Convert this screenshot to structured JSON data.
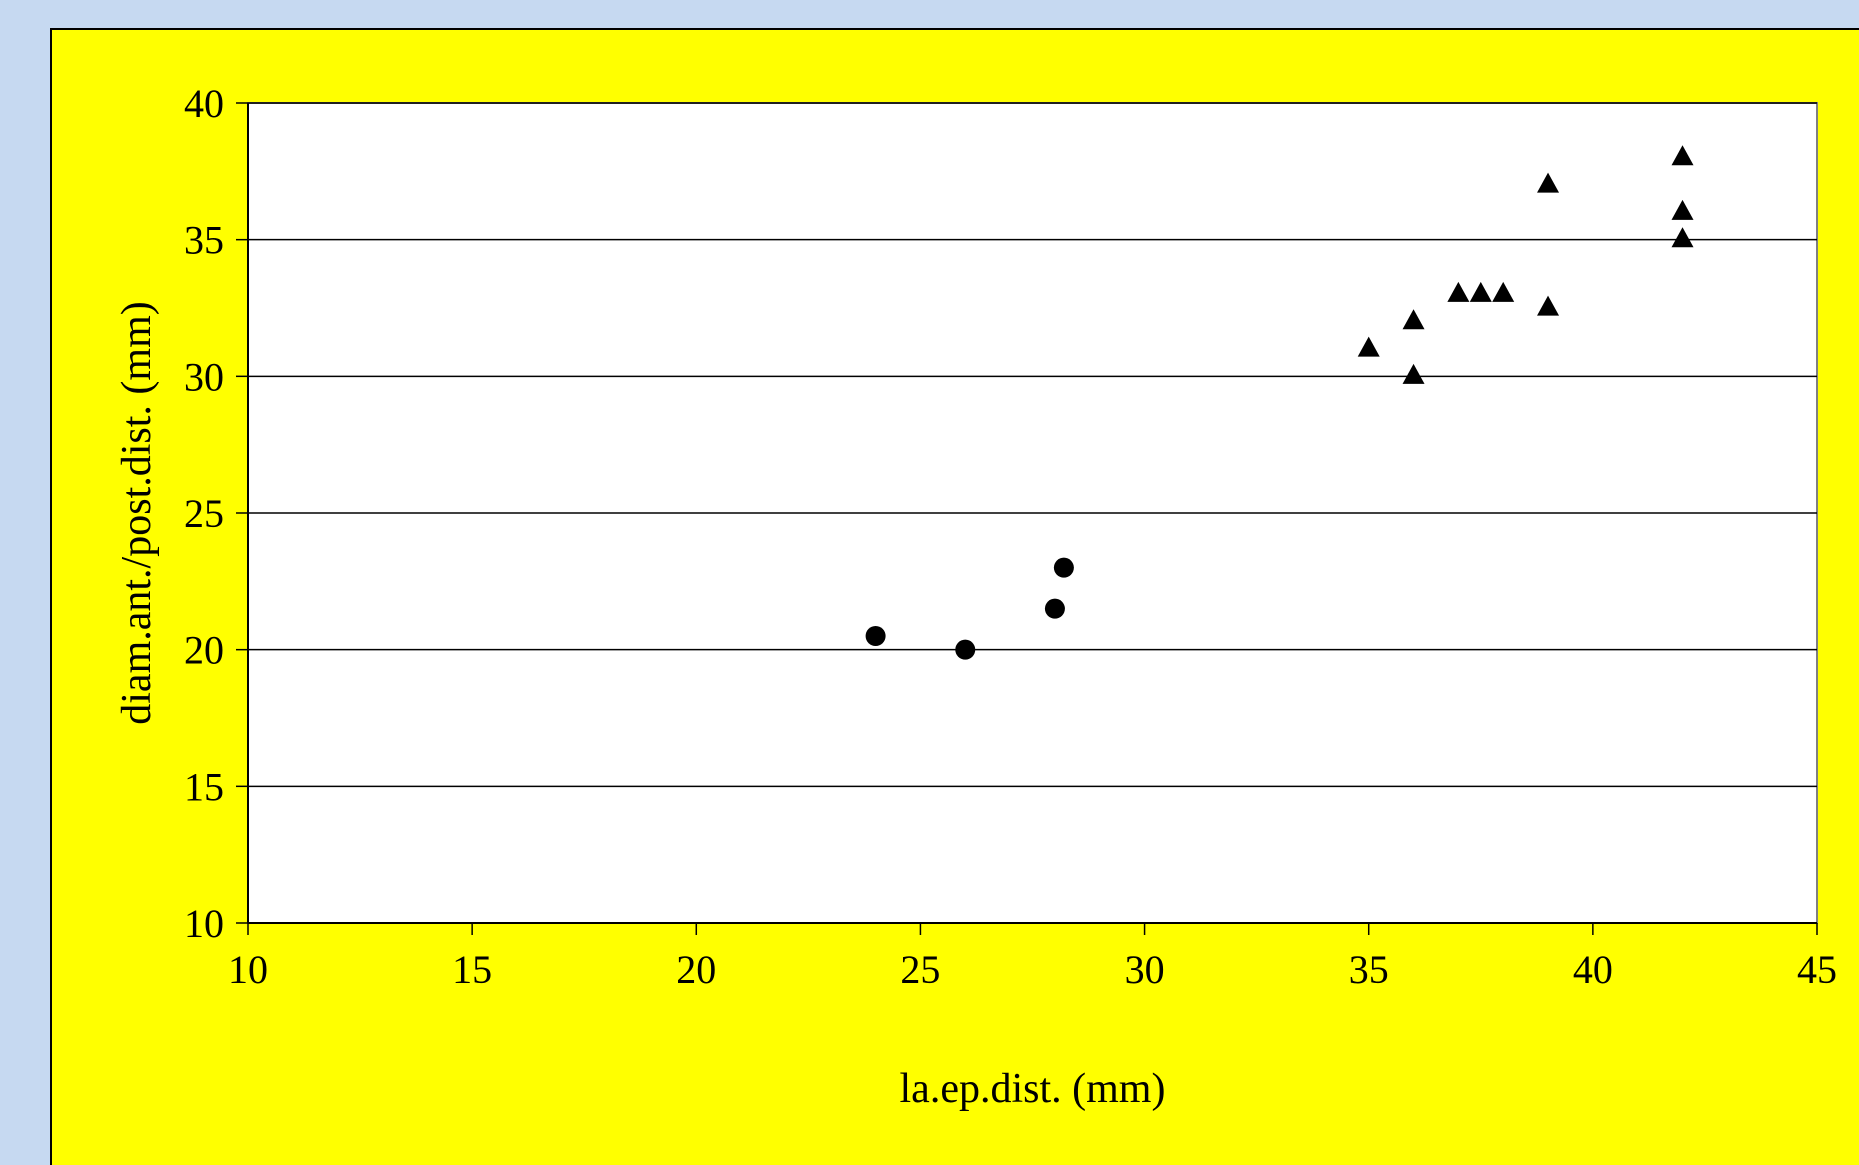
{
  "chart_data": {
    "type": "scatter",
    "title": "",
    "xlabel": "la.ep.dist. (mm)",
    "ylabel": "diam.ant./post.dist. (mm)",
    "xlim": [
      10,
      45
    ],
    "ylim": [
      10,
      40
    ],
    "x_ticks": [
      10,
      15,
      20,
      25,
      30,
      35,
      40,
      45
    ],
    "y_ticks": [
      10,
      15,
      20,
      25,
      30,
      35,
      40
    ],
    "x_tick_labels": [
      "10",
      "15",
      "20",
      "25",
      "30",
      "35",
      "40",
      "45"
    ],
    "y_tick_labels": [
      "10",
      "15",
      "20",
      "25",
      "30",
      "35",
      "40"
    ],
    "grid": "horizontal",
    "legend": "none",
    "colors": {
      "outer_background": "#c6d9f1",
      "chart_background": "#ffff00",
      "plot_background": "#ffffff",
      "markers": "#000000"
    },
    "series": [
      {
        "marker": "circle",
        "points": [
          {
            "x": 24,
            "y": 20.5
          },
          {
            "x": 26,
            "y": 20
          },
          {
            "x": 28,
            "y": 21.5
          },
          {
            "x": 28.2,
            "y": 23
          }
        ]
      },
      {
        "marker": "triangle",
        "points": [
          {
            "x": 35,
            "y": 31
          },
          {
            "x": 36,
            "y": 32
          },
          {
            "x": 36,
            "y": 30
          },
          {
            "x": 37,
            "y": 33
          },
          {
            "x": 37.5,
            "y": 33
          },
          {
            "x": 38,
            "y": 33
          },
          {
            "x": 39,
            "y": 37
          },
          {
            "x": 39,
            "y": 32.5
          },
          {
            "x": 42,
            "y": 38
          },
          {
            "x": 42,
            "y": 36
          },
          {
            "x": 42,
            "y": 35
          }
        ]
      }
    ]
  }
}
